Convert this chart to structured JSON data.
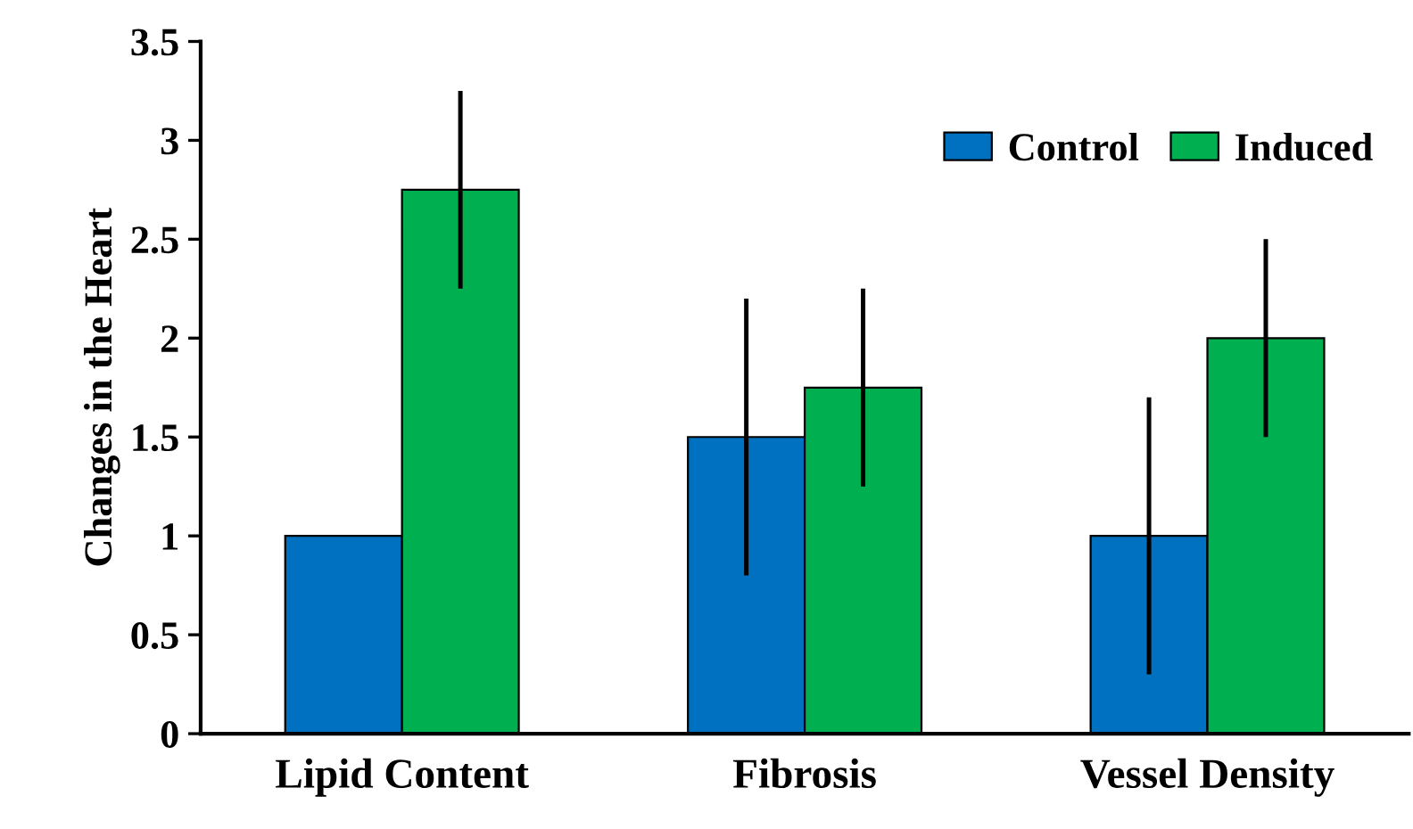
{
  "chart_data": {
    "type": "bar",
    "ylabel": "Changes in the Heart",
    "categories": [
      "Lipid Content",
      "Fibrosis",
      "Vessel Density"
    ],
    "series": [
      {
        "name": "Control",
        "color": "#0070c0",
        "values": [
          1,
          1.5,
          1
        ],
        "errors": [
          null,
          0.7,
          0.7
        ]
      },
      {
        "name": "Induced",
        "color": "#00b050",
        "values": [
          2.75,
          1.75,
          2
        ],
        "errors": [
          0.5,
          0.5,
          0.5
        ]
      }
    ],
    "ylim": [
      0,
      3.5
    ],
    "yticks": [
      0,
      0.5,
      1,
      1.5,
      2,
      2.5,
      3,
      3.5
    ],
    "grid": false,
    "legend": "top right"
  }
}
